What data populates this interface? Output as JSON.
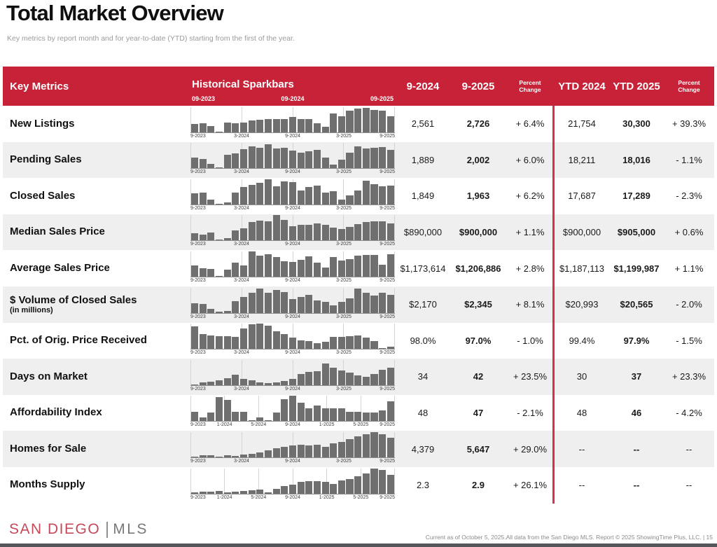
{
  "page": {
    "title": "Total Market Overview",
    "subtitle": "Key metrics by report month and for year-to-date (YTD) starting from the first of the year."
  },
  "colors": {
    "header_red": "#c72237",
    "divider_red": "#d93049",
    "bar_gray": "#6f6f6f",
    "row_alt": "#f0efef",
    "logo_red": "#c5495a",
    "logo_gray": "#77787b"
  },
  "table": {
    "header": {
      "key_metrics": "Key Metrics",
      "sparkbars_title": "Historical Sparkbars",
      "sparkbar_ticks": [
        "09-2023",
        "09-2024",
        "09-2025"
      ],
      "columns": [
        "9-2024",
        "9-2025",
        "Percent Change",
        "YTD 2024",
        "YTD 2025",
        "Percent Change"
      ]
    },
    "rows": [
      {
        "metric": "New Listings",
        "sub": "",
        "axis": [
          "9-2023",
          "3-2024",
          "9-2024",
          "3-2025",
          "9-2025"
        ],
        "spark": [
          32,
          34,
          23,
          3,
          38,
          34,
          39,
          46,
          49,
          53,
          51,
          53,
          59,
          51,
          53,
          36,
          21,
          74,
          62,
          86,
          93,
          96,
          89,
          85,
          63
        ],
        "m_2024": "2,561",
        "m_2025": "2,726",
        "m_pct": "+ 6.4%",
        "ytd_2024": "21,754",
        "ytd_2025": "30,300",
        "ytd_pct": "+ 39.3%"
      },
      {
        "metric": "Pending Sales",
        "sub": "",
        "axis": [
          "9-2023",
          "3-2024",
          "9-2024",
          "3-2025",
          "9-2025"
        ],
        "spark": [
          42,
          38,
          18,
          3,
          52,
          60,
          75,
          88,
          82,
          95,
          78,
          82,
          70,
          62,
          68,
          72,
          42,
          15,
          35,
          62,
          88,
          78,
          82,
          85,
          72
        ],
        "m_2024": "1,889",
        "m_2025": "2,002",
        "m_pct": "+ 6.0%",
        "ytd_2024": "18,211",
        "ytd_2025": "18,016",
        "ytd_pct": "- 1.1%"
      },
      {
        "metric": "Closed Sales",
        "sub": "",
        "axis": [
          "9-2023",
          "3-2024",
          "9-2024",
          "3-2025",
          "9-2025"
        ],
        "spark": [
          45,
          48,
          18,
          2,
          8,
          48,
          68,
          78,
          85,
          100,
          72,
          92,
          88,
          55,
          68,
          75,
          48,
          52,
          20,
          35,
          55,
          95,
          80,
          72,
          75
        ],
        "m_2024": "1,849",
        "m_2025": "1,963",
        "m_pct": "+ 6.2%",
        "ytd_2024": "17,687",
        "ytd_2025": "17,289",
        "ytd_pct": "- 2.3%"
      },
      {
        "metric": "Median Sales Price",
        "sub": "",
        "axis": [
          "9-2023",
          "3-2024",
          "9-2024",
          "3-2025",
          "9-2025"
        ],
        "spark": [
          30,
          24,
          32,
          3,
          9,
          40,
          48,
          72,
          78,
          75,
          100,
          82,
          58,
          62,
          62,
          68,
          62,
          52,
          45,
          55,
          65,
          72,
          75,
          75,
          68
        ],
        "m_2024": "$890,000",
        "m_2025": "$900,000",
        "m_pct": "+ 1.1%",
        "ytd_2024": "$900,000",
        "ytd_2025": "$905,000",
        "ytd_pct": "+ 0.6%"
      },
      {
        "metric": "Average Sales Price",
        "sub": "",
        "axis": [
          "9-2023",
          "3-2024",
          "9-2024",
          "3-2025",
          "9-2025"
        ],
        "spark": [
          45,
          32,
          30,
          3,
          28,
          55,
          45,
          100,
          82,
          88,
          78,
          62,
          58,
          68,
          80,
          55,
          35,
          78,
          65,
          70,
          82,
          85,
          85,
          48,
          90
        ],
        "m_2024": "$1,173,614",
        "m_2025": "$1,206,886",
        "m_pct": "+ 2.8%",
        "ytd_2024": "$1,187,113",
        "ytd_2025": "$1,199,987",
        "ytd_pct": "+ 1.1%"
      },
      {
        "metric": "$ Volume of Closed Sales",
        "sub": "(in millions)",
        "axis": [
          "9-2023",
          "3-2024",
          "9-2024",
          "3-2025",
          "9-2025"
        ],
        "spark": [
          38,
          36,
          15,
          3,
          8,
          45,
          62,
          80,
          95,
          78,
          90,
          82,
          55,
          62,
          72,
          48,
          42,
          30,
          42,
          58,
          95,
          78,
          68,
          78,
          70
        ],
        "m_2024": "$2,170",
        "m_2025": "$2,345",
        "m_pct": "+ 8.1%",
        "ytd_2024": "$20,993",
        "ytd_2025": "$20,565",
        "ytd_pct": "- 2.0%"
      },
      {
        "metric": "Pct. of Orig. Price Received",
        "sub": "",
        "axis": [
          "9-2023",
          "3-2024",
          "9-2024",
          "3-2025",
          "9-2025"
        ],
        "spark": [
          90,
          60,
          52,
          50,
          50,
          48,
          80,
          97,
          100,
          93,
          70,
          58,
          45,
          35,
          32,
          22,
          27,
          48,
          48,
          50,
          52,
          45,
          30,
          3,
          8
        ],
        "m_2024": "98.0%",
        "m_2025": "97.0%",
        "m_pct": "- 1.0%",
        "ytd_2024": "99.4%",
        "ytd_2025": "97.9%",
        "ytd_pct": "- 1.5%"
      },
      {
        "metric": "Days on Market",
        "sub": "",
        "axis": [
          "9-2023",
          "3-2024",
          "9-2024",
          "3-2025",
          "9-2025"
        ],
        "spark": [
          3,
          10,
          12,
          18,
          28,
          42,
          25,
          20,
          10,
          8,
          10,
          15,
          25,
          45,
          52,
          55,
          85,
          68,
          58,
          48,
          38,
          32,
          45,
          60,
          70
        ],
        "m_2024": "34",
        "m_2025": "42",
        "m_pct": "+ 23.5%",
        "ytd_2024": "30",
        "ytd_2025": "37",
        "ytd_pct": "+ 23.3%"
      },
      {
        "metric": "Affordability Index",
        "sub": "",
        "axis": [
          "9-2023",
          "1-2024",
          "5-2024",
          "9-2024",
          "1-2025",
          "5-2025",
          "9-2025"
        ],
        "spark": [
          38,
          15,
          35,
          95,
          85,
          38,
          38,
          3,
          15,
          3,
          35,
          88,
          100,
          72,
          52,
          62,
          52,
          52,
          52,
          38,
          38,
          35,
          35,
          42,
          78
        ],
        "m_2024": "48",
        "m_2025": "47",
        "m_pct": "- 2.1%",
        "ytd_2024": "48",
        "ytd_2025": "46",
        "ytd_pct": "- 4.2%"
      },
      {
        "metric": "Homes for Sale",
        "sub": "",
        "axis": [
          "9-2023",
          "3-2024",
          "9-2024",
          "3-2025",
          "9-2025"
        ],
        "spark": [
          3,
          8,
          8,
          2,
          7,
          6,
          10,
          14,
          20,
          28,
          35,
          42,
          48,
          50,
          48,
          50,
          42,
          55,
          62,
          72,
          82,
          92,
          100,
          92,
          78
        ],
        "m_2024": "4,379",
        "m_2025": "5,647",
        "m_pct": "+ 29.0%",
        "ytd_2024": "--",
        "ytd_2025": "--",
        "ytd_pct": "--"
      },
      {
        "metric": "Months Supply",
        "sub": "",
        "axis": [
          "9-2023",
          "1-2024",
          "5-2024",
          "9-2024",
          "1-2025",
          "5-2025",
          "9-2025"
        ],
        "spark": [
          5,
          8,
          8,
          10,
          3,
          8,
          10,
          12,
          15,
          3,
          18,
          28,
          35,
          45,
          48,
          48,
          45,
          38,
          52,
          58,
          68,
          78,
          100,
          92,
          75
        ],
        "m_2024": "2.3",
        "m_2025": "2.9",
        "m_pct": "+ 26.1%",
        "ytd_2024": "--",
        "ytd_2025": "--",
        "ytd_pct": "--"
      }
    ]
  },
  "footer": {
    "logo_primary": "SAN DIEGO",
    "logo_secondary": "MLS",
    "disclaimer": "Current as of October 5, 2025.All data from the San Diego MLS. Report © 2025 ShowingTime Plus, LLC.  |  15"
  }
}
